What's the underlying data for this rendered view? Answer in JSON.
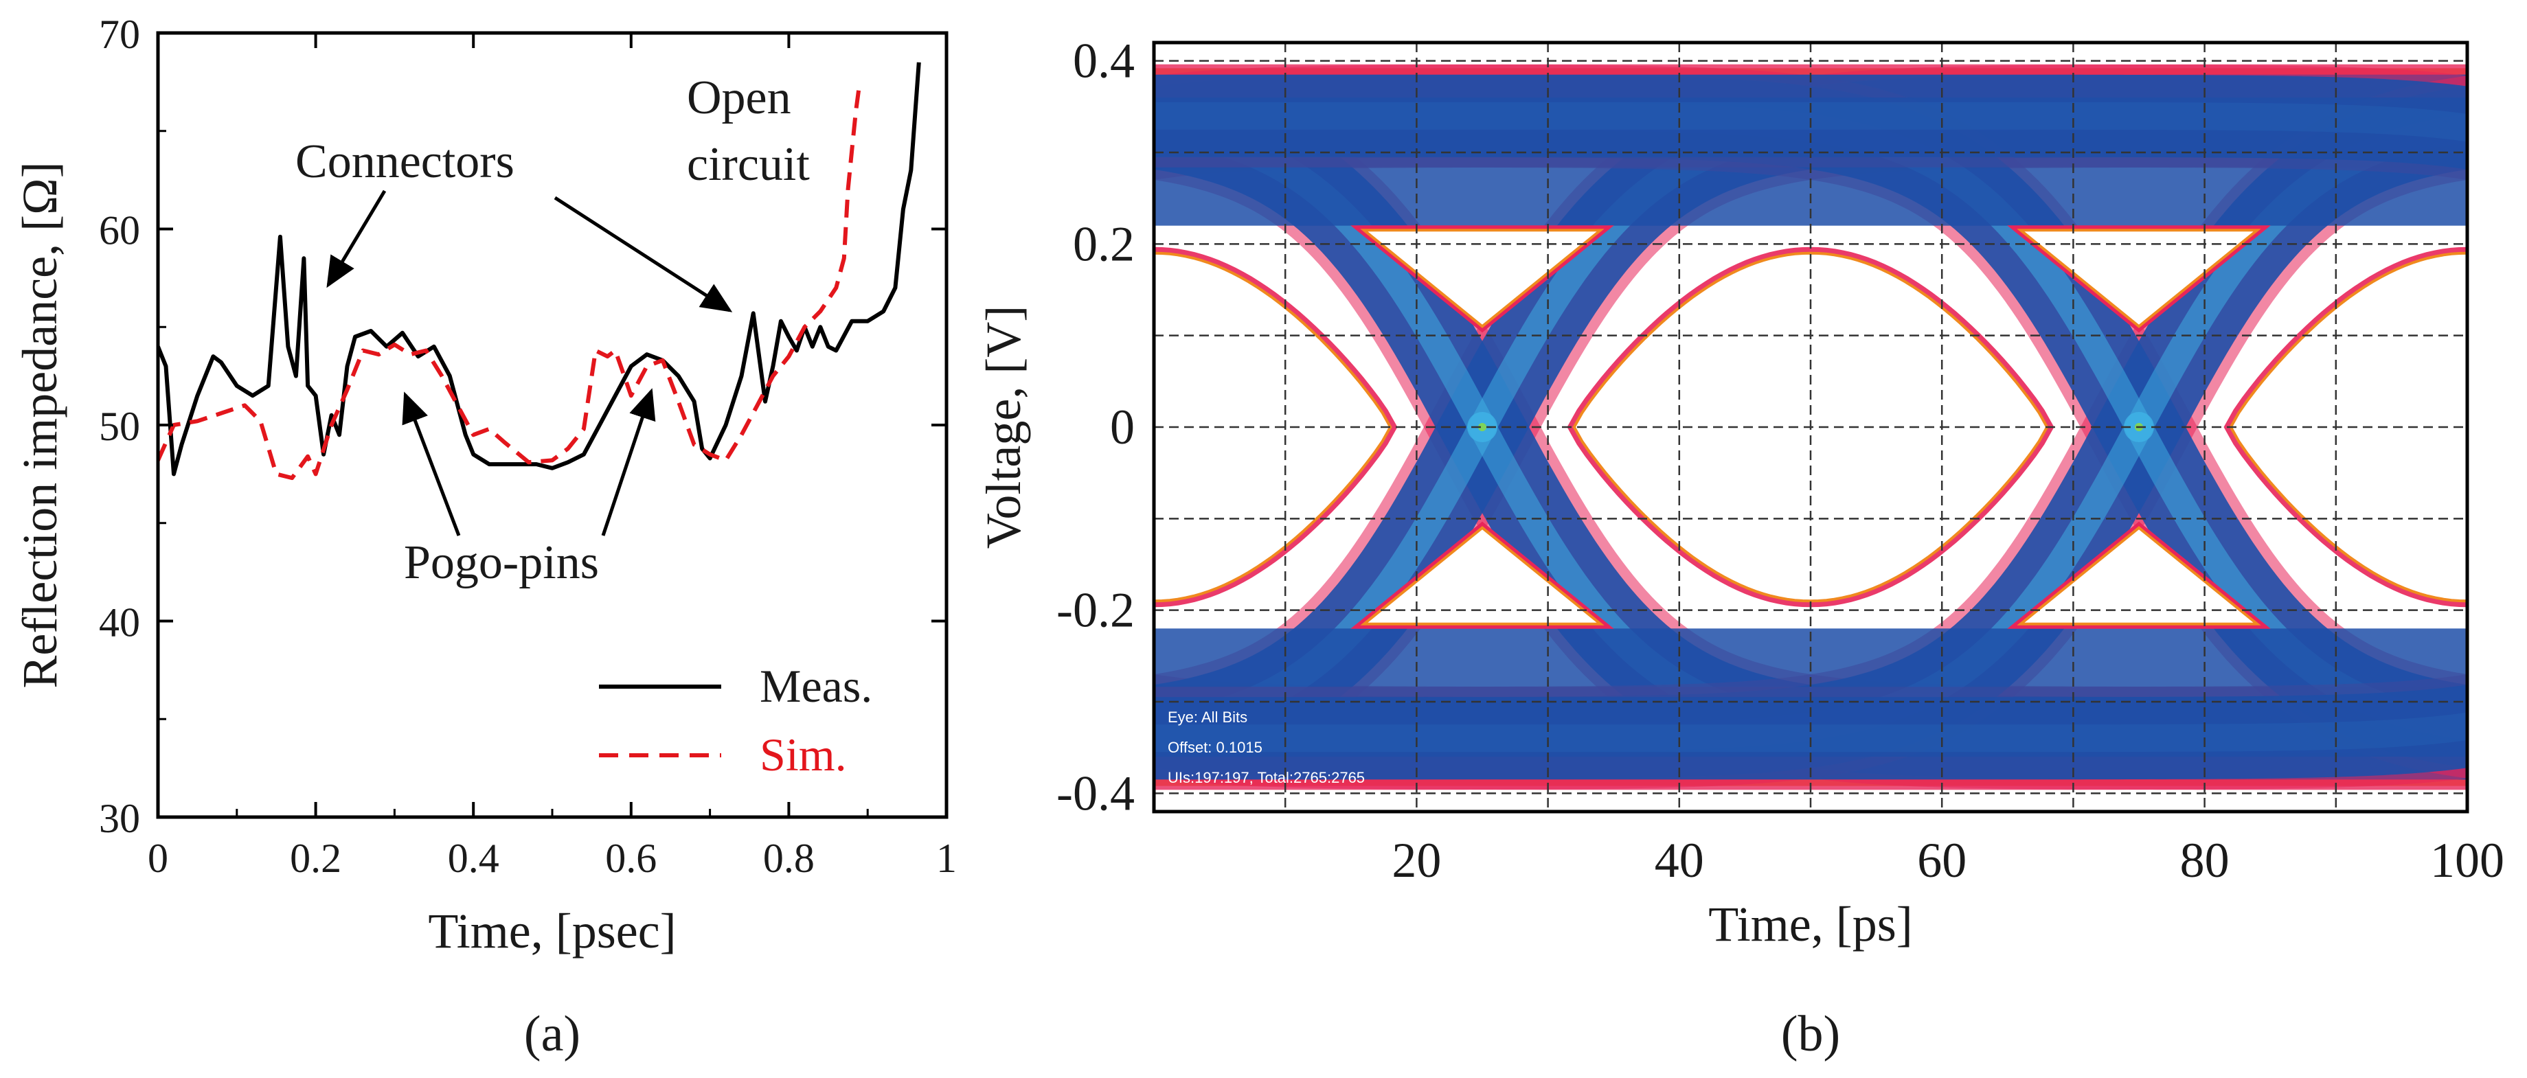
{
  "chart_data": [
    {
      "panel_label": "(a)",
      "type": "line",
      "xlabel": "Time, [psec]",
      "ylabel": "Reflection impedance, [Ω]",
      "xlim": [
        0,
        1
      ],
      "ylim": [
        30,
        70
      ],
      "x_ticks": [
        "0",
        "0.2",
        "0.4",
        "0.6",
        "0.8",
        "1"
      ],
      "y_ticks": [
        "30",
        "40",
        "50",
        "60",
        "70"
      ],
      "legend": {
        "placement": "bottom-right"
      },
      "series": [
        {
          "name": "Meas.",
          "color": "#000000",
          "dash": "solid",
          "x": [
            0,
            0.01,
            0.02,
            0.03,
            0.05,
            0.07,
            0.08,
            0.1,
            0.12,
            0.14,
            0.155,
            0.165,
            0.175,
            0.185,
            0.19,
            0.2,
            0.21,
            0.22,
            0.23,
            0.24,
            0.25,
            0.27,
            0.29,
            0.31,
            0.33,
            0.35,
            0.37,
            0.39,
            0.4,
            0.42,
            0.45,
            0.48,
            0.5,
            0.52,
            0.54,
            0.56,
            0.58,
            0.6,
            0.62,
            0.64,
            0.66,
            0.68,
            0.69,
            0.7,
            0.72,
            0.74,
            0.755,
            0.77,
            0.78,
            0.79,
            0.8,
            0.81,
            0.82,
            0.83,
            0.84,
            0.85,
            0.86,
            0.88,
            0.9,
            0.92,
            0.935,
            0.945,
            0.955,
            0.965
          ],
          "y": [
            54,
            53,
            47.5,
            49,
            51.5,
            53.5,
            53.2,
            52,
            51.5,
            52,
            59.6,
            54,
            52.5,
            58.5,
            52,
            51.5,
            48.5,
            50.5,
            49.5,
            53,
            54.5,
            54.8,
            54,
            54.7,
            53.5,
            54,
            52.5,
            49.5,
            48.5,
            48,
            48,
            48,
            47.8,
            48.1,
            48.5,
            50,
            51.5,
            53,
            53.6,
            53.3,
            52.5,
            51.2,
            48.8,
            48.3,
            50,
            52.5,
            55.7,
            51.2,
            53,
            55.3,
            54.5,
            53.8,
            55,
            54,
            55,
            54,
            53.8,
            55.3,
            55.3,
            55.8,
            57,
            61,
            63,
            68.5
          ]
        },
        {
          "name": "Sim.",
          "color": "#e3161c",
          "dash": "dashed",
          "x": [
            0,
            0.02,
            0.05,
            0.08,
            0.11,
            0.13,
            0.15,
            0.17,
            0.19,
            0.2,
            0.22,
            0.24,
            0.26,
            0.28,
            0.3,
            0.32,
            0.34,
            0.36,
            0.38,
            0.4,
            0.42,
            0.44,
            0.47,
            0.5,
            0.52,
            0.54,
            0.555,
            0.57,
            0.58,
            0.6,
            0.62,
            0.64,
            0.66,
            0.68,
            0.7,
            0.72,
            0.74,
            0.76,
            0.78,
            0.8,
            0.82,
            0.84,
            0.86,
            0.87,
            0.875,
            0.88,
            0.885,
            0.89
          ],
          "y": [
            48.2,
            50,
            50.2,
            50.6,
            51,
            50.2,
            47.5,
            47.3,
            48.4,
            47.5,
            50,
            51.8,
            53.8,
            53.6,
            54.1,
            53.6,
            53.8,
            52.5,
            51,
            49.5,
            49.8,
            49.1,
            48.1,
            48.2,
            48.8,
            49.8,
            53.8,
            53.5,
            53.8,
            51.5,
            53,
            53.3,
            51.2,
            49,
            48.5,
            48.2,
            49.5,
            51,
            52.5,
            53.5,
            55,
            55.8,
            57,
            58.5,
            62,
            64,
            66,
            67.5
          ]
        }
      ],
      "annotations": [
        {
          "text": "Connectors"
        },
        {
          "text": "Open"
        },
        {
          "text": "circuit"
        },
        {
          "text": "Pogo-pins"
        }
      ]
    },
    {
      "panel_label": "(b)",
      "type": "heatmap",
      "subtype": "eye-diagram",
      "xlabel": "Time, [ps]",
      "ylabel": "Voltage, [V]",
      "xlim": [
        0,
        100
      ],
      "ylim": [
        -0.42,
        0.42
      ],
      "x_ticks": [
        "20",
        "40",
        "60",
        "80",
        "100"
      ],
      "y_ticks": [
        "0.4",
        "0.2",
        "0",
        "-0.2",
        "-0.4"
      ],
      "grid": true,
      "eye": {
        "high_level": 0.38,
        "low_level": -0.38,
        "crossings_ps": [
          25,
          75
        ],
        "unit_interval_ps": 50
      },
      "colors": {
        "background": "#ffffff",
        "density_low": "#e8255a",
        "density_mid": "#1e4fa8",
        "density_high": "#3fb3e6",
        "edge": "#f08a1e"
      },
      "info_box": [
        "Eye: All Bits",
        "Offset: 0.1015",
        "UIs:197:197, Total:2765:2765"
      ]
    }
  ]
}
